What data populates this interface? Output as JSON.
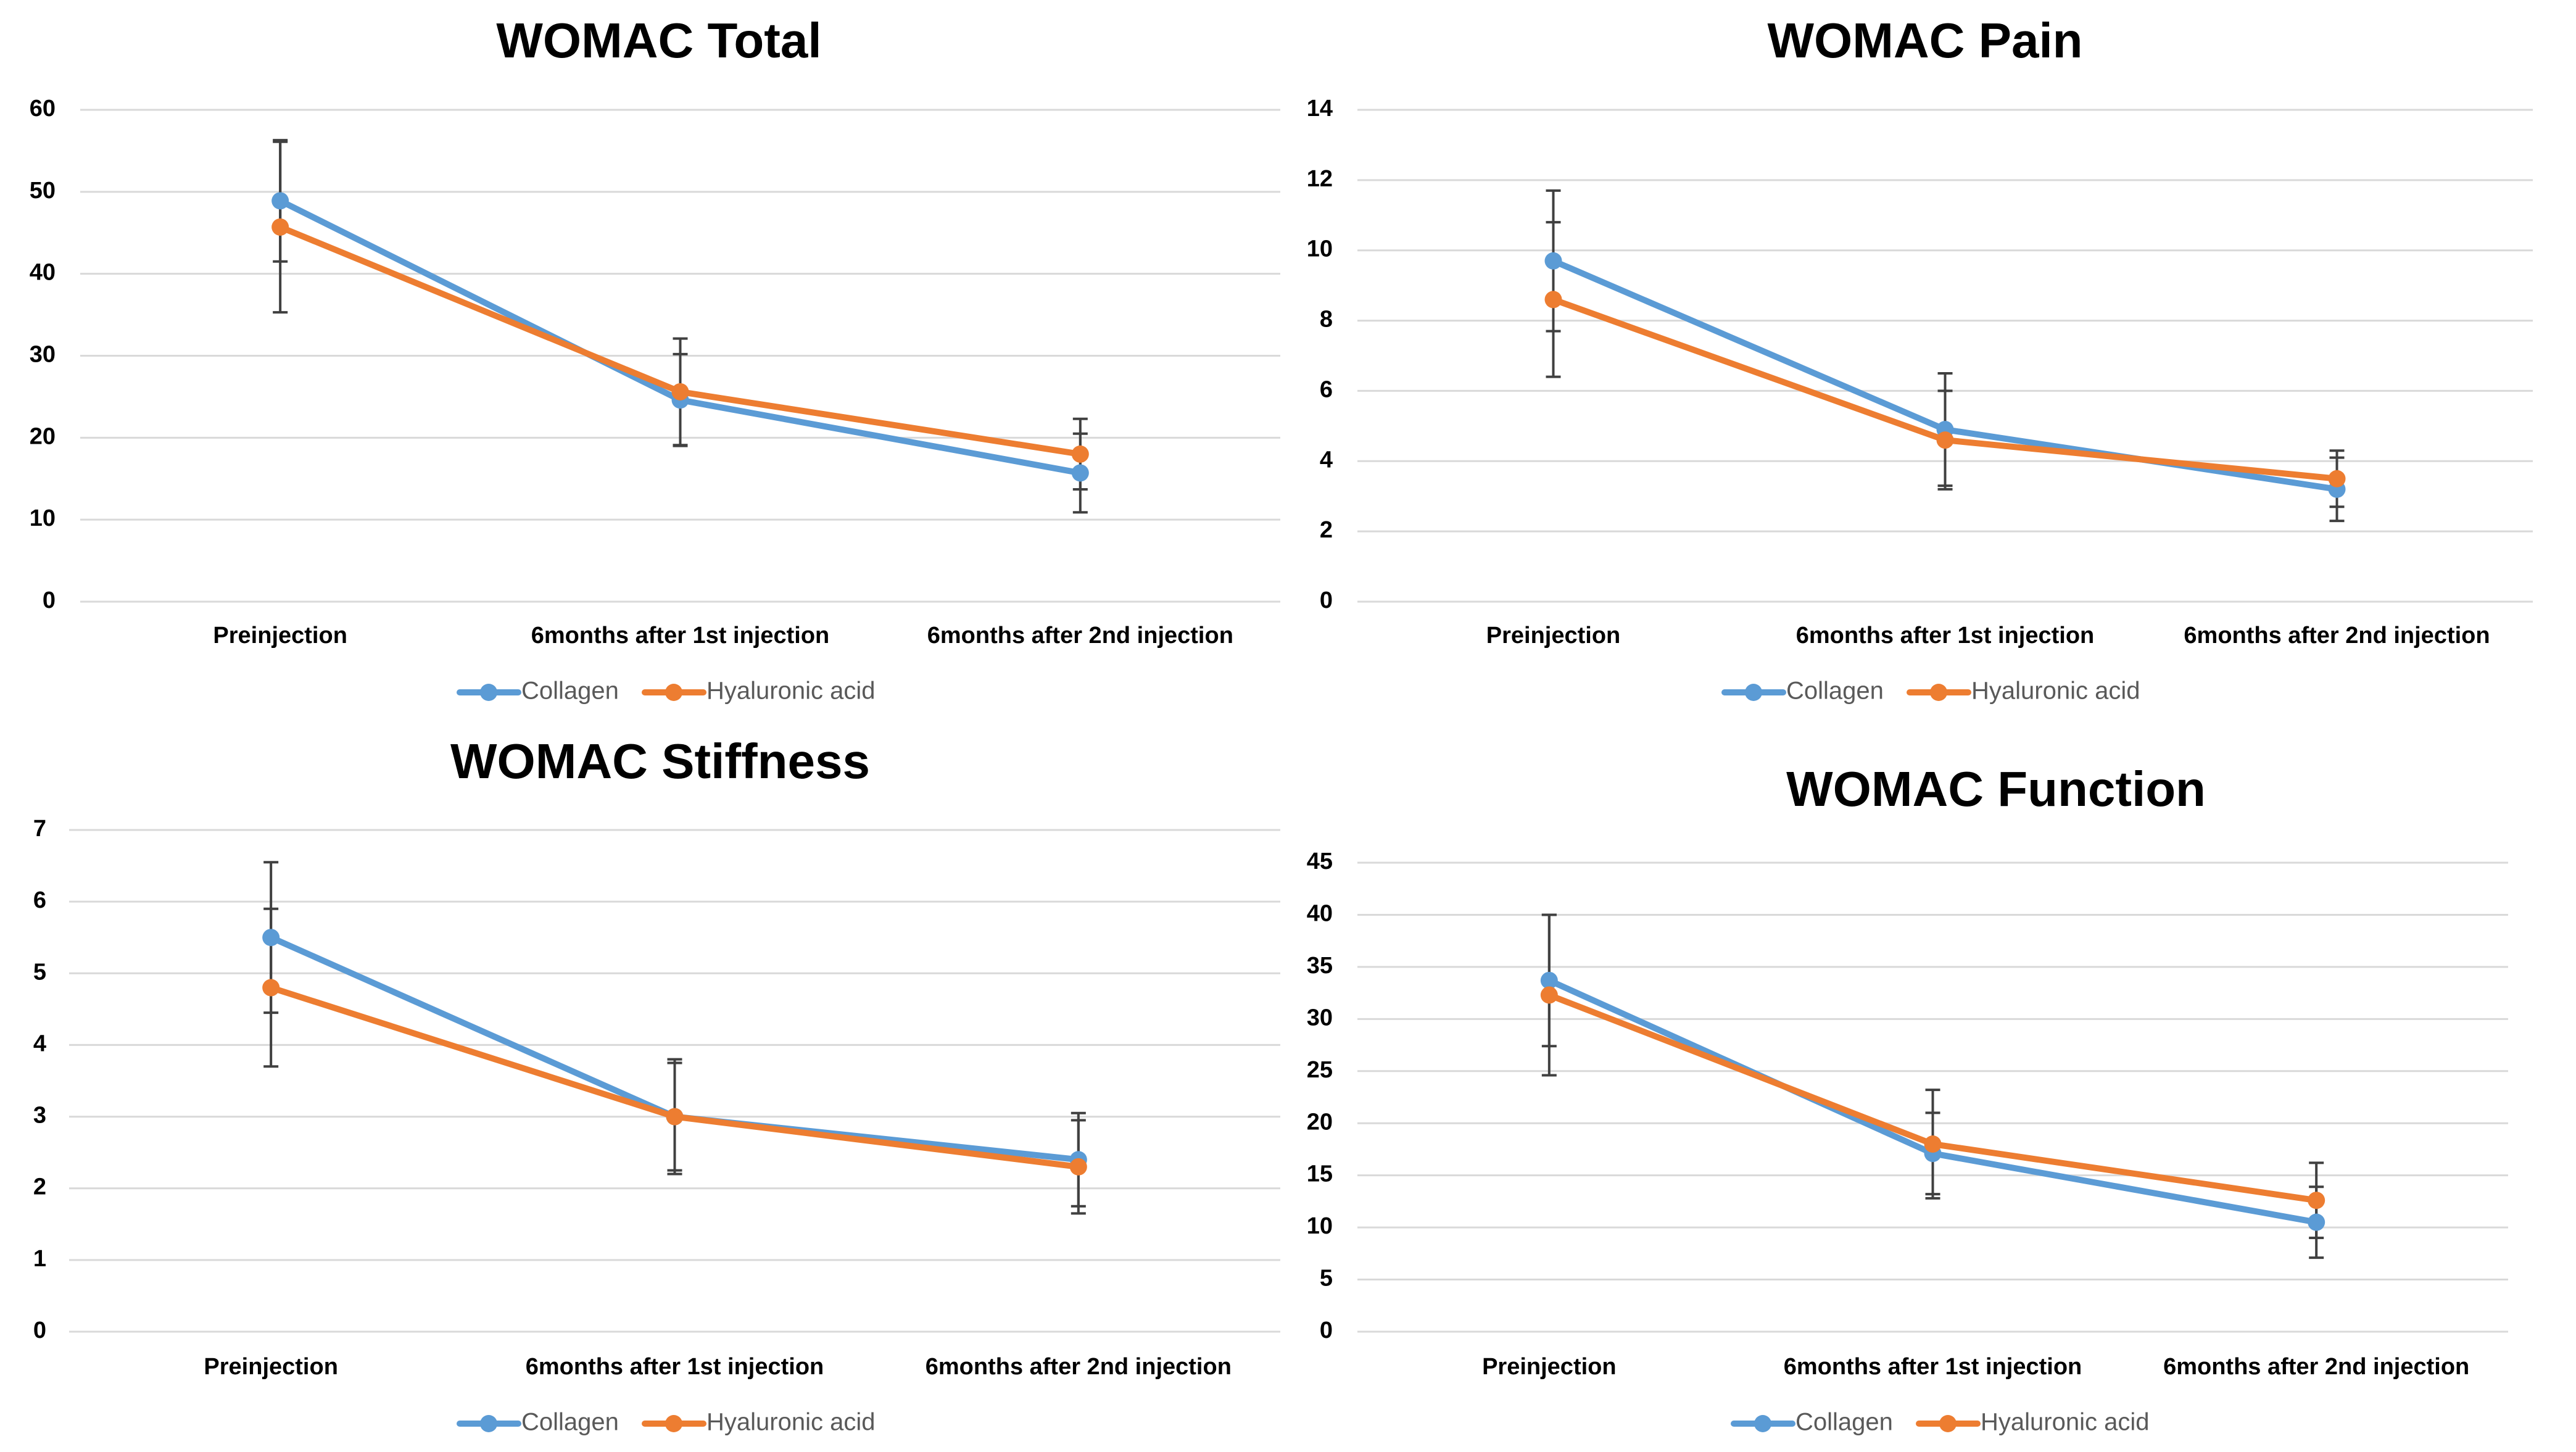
{
  "chart_data": [
    {
      "type": "line",
      "title": "WOMAC Total",
      "categories": [
        "Preinjection",
        "6months after 1st injection",
        "6months after 2nd injection"
      ],
      "ylim": [
        0,
        60
      ],
      "yticks": [
        0,
        10,
        20,
        30,
        40,
        50,
        60
      ],
      "series": [
        {
          "name": "Collagen",
          "color": "#5b9bd5",
          "values": [
            48.9,
            24.6,
            15.7
          ],
          "errors": [
            7.4,
            5.6,
            4.8
          ]
        },
        {
          "name": "Hyaluronic acid",
          "color": "#ed7d31",
          "values": [
            45.7,
            25.6,
            18.0
          ],
          "errors": [
            10.4,
            6.5,
            4.3
          ]
        }
      ]
    },
    {
      "type": "line",
      "title": "WOMAC Pain",
      "categories": [
        "Preinjection",
        "6months after 1st injection",
        "6months after 2nd injection"
      ],
      "ylim": [
        0,
        14
      ],
      "yticks": [
        0,
        2,
        4,
        6,
        8,
        10,
        12,
        14
      ],
      "series": [
        {
          "name": "Collagen",
          "color": "#5b9bd5",
          "values": [
            9.7,
            4.9,
            3.2
          ],
          "errors": [
            2.0,
            1.6,
            0.9
          ]
        },
        {
          "name": "Hyaluronic acid",
          "color": "#ed7d31",
          "values": [
            8.6,
            4.6,
            3.5
          ],
          "errors": [
            2.2,
            1.4,
            0.8
          ]
        }
      ]
    },
    {
      "type": "line",
      "title": "WOMAC Stiffness",
      "categories": [
        "Preinjection",
        "6months after 1st injection",
        "6months after 2nd injection"
      ],
      "ylim": [
        0,
        7
      ],
      "yticks": [
        0,
        1,
        2,
        3,
        4,
        5,
        6,
        7
      ],
      "series": [
        {
          "name": "Collagen",
          "color": "#5b9bd5",
          "values": [
            5.5,
            3.0,
            2.4
          ],
          "errors": [
            1.05,
            0.8,
            0.65
          ]
        },
        {
          "name": "Hyaluronic acid",
          "color": "#ed7d31",
          "values": [
            4.8,
            3.0,
            2.3
          ],
          "errors": [
            1.1,
            0.75,
            0.65
          ]
        }
      ]
    },
    {
      "type": "line",
      "title": "WOMAC Function",
      "categories": [
        "Preinjection",
        "6months after 1st injection",
        "6months after 2nd injection"
      ],
      "ylim": [
        0,
        45
      ],
      "yticks": [
        0,
        5,
        10,
        15,
        20,
        25,
        30,
        35,
        40,
        45
      ],
      "series": [
        {
          "name": "Collagen",
          "color": "#5b9bd5",
          "values": [
            33.7,
            17.1,
            10.5
          ],
          "errors": [
            6.3,
            3.9,
            3.4
          ]
        },
        {
          "name": "Hyaluronic acid",
          "color": "#ed7d31",
          "values": [
            32.3,
            18.0,
            12.6
          ],
          "errors": [
            7.7,
            5.2,
            3.6
          ]
        }
      ]
    }
  ]
}
